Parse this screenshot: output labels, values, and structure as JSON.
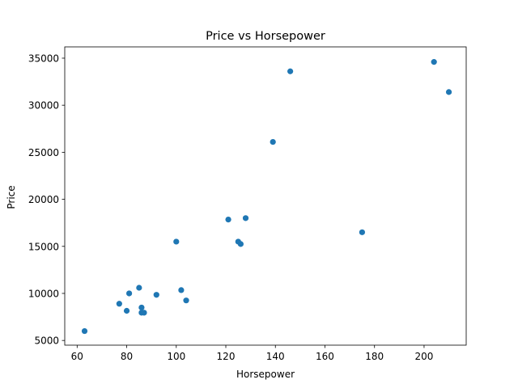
{
  "chart_data": {
    "type": "scatter",
    "title": "Price vs Horsepower",
    "xlabel": "Horsepower",
    "ylabel": "Price",
    "xlim": [
      55,
      217
    ],
    "ylim": [
      4500,
      36200
    ],
    "xticks": [
      60,
      80,
      100,
      120,
      140,
      160,
      180,
      200
    ],
    "yticks": [
      5000,
      10000,
      15000,
      20000,
      25000,
      30000,
      35000
    ],
    "grid": false,
    "marker_color": "#1f77b4",
    "points": [
      {
        "x": 63,
        "y": 6000
      },
      {
        "x": 77,
        "y": 8900
      },
      {
        "x": 80,
        "y": 8150
      },
      {
        "x": 81,
        "y": 10000
      },
      {
        "x": 85,
        "y": 10600
      },
      {
        "x": 86,
        "y": 7950
      },
      {
        "x": 86,
        "y": 8500
      },
      {
        "x": 87,
        "y": 7950
      },
      {
        "x": 92,
        "y": 9850
      },
      {
        "x": 100,
        "y": 15500
      },
      {
        "x": 102,
        "y": 10350
      },
      {
        "x": 104,
        "y": 9250
      },
      {
        "x": 121,
        "y": 17850
      },
      {
        "x": 125,
        "y": 15500
      },
      {
        "x": 126,
        "y": 15250
      },
      {
        "x": 128,
        "y": 18000
      },
      {
        "x": 139,
        "y": 26100
      },
      {
        "x": 146,
        "y": 33600
      },
      {
        "x": 175,
        "y": 16500
      },
      {
        "x": 204,
        "y": 34600
      },
      {
        "x": 210,
        "y": 31400
      }
    ]
  }
}
